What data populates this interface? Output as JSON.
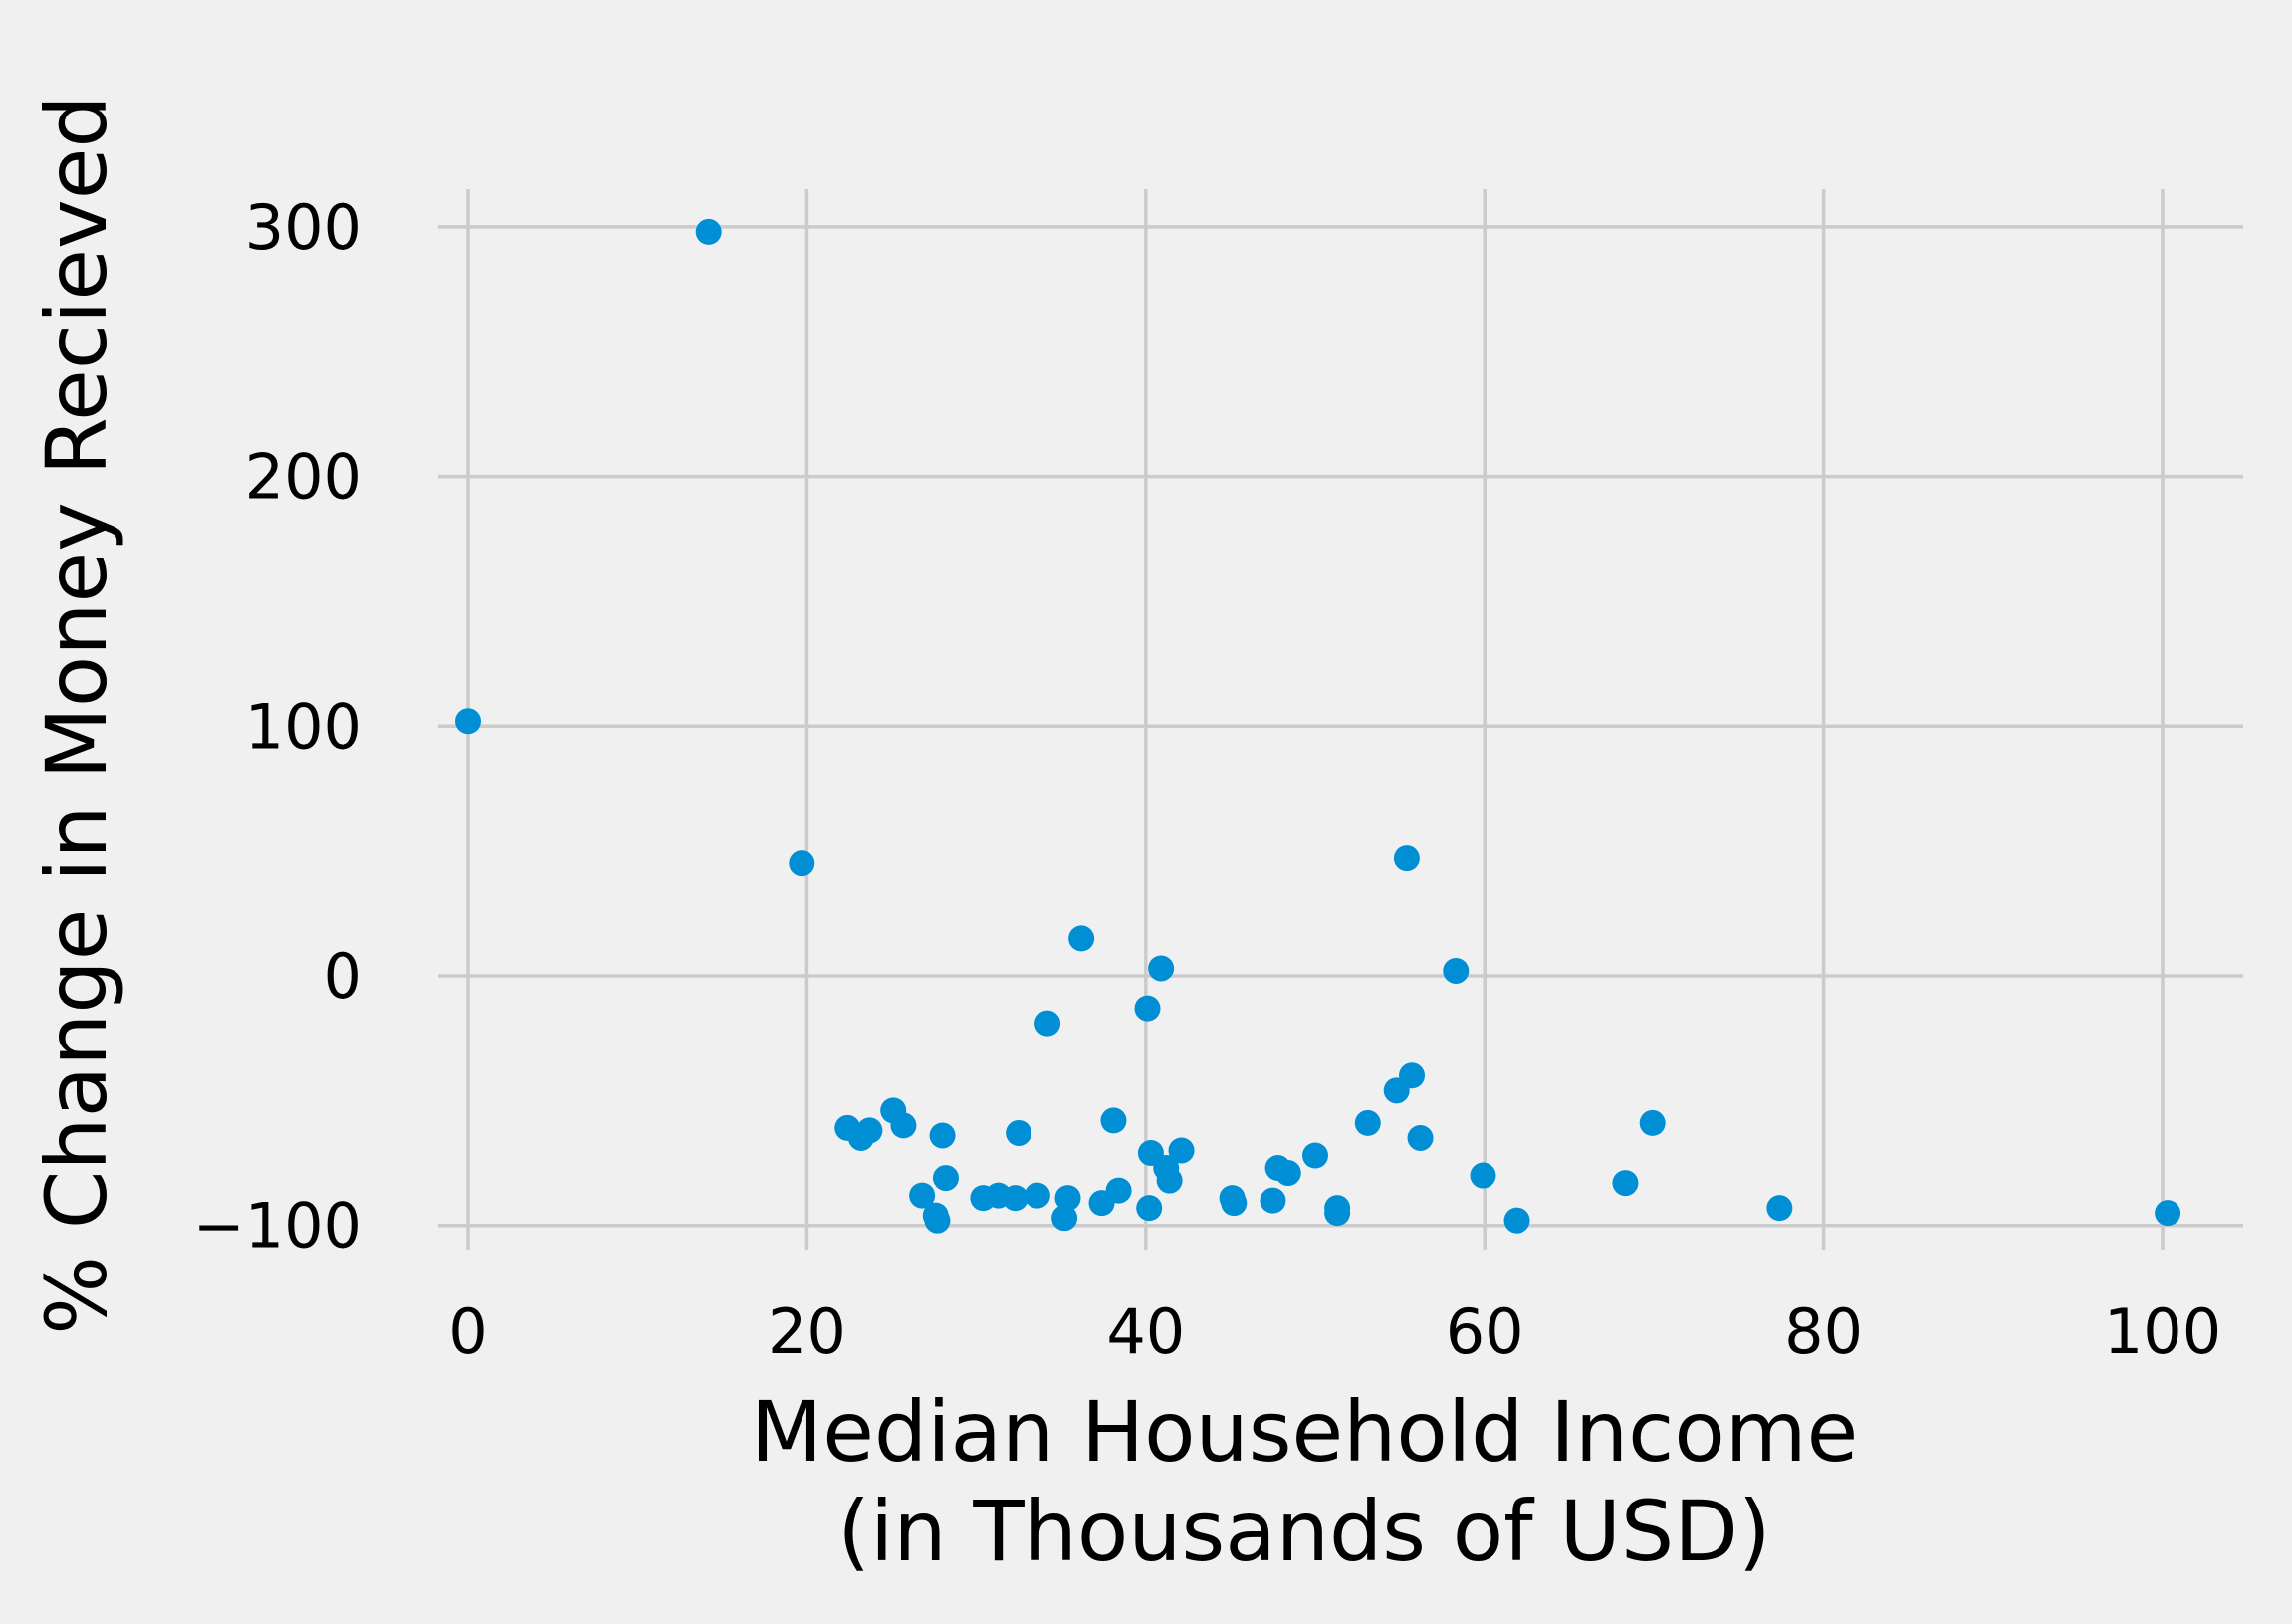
{
  "chart_data": {
    "type": "scatter",
    "title": "",
    "xlabel": "Median Household Income",
    "xlabel_line2": "(in Thousands of USD)",
    "ylabel": "% Change in Money Recieved",
    "xlim": [
      -4,
      104
    ],
    "ylim": [
      -110,
      375
    ],
    "xticks": [
      0,
      20,
      40,
      60,
      80,
      100
    ],
    "yticks": [
      -100,
      0,
      100,
      200,
      300
    ],
    "ytick_labels": [
      "−100",
      "0",
      "100",
      "200",
      "300"
    ],
    "grid": true,
    "colors": {
      "point": "#008fd5",
      "grid": "#cbcbcb",
      "background": "#f0f0f0"
    },
    "points": [
      {
        "x": 0.0,
        "y": 102
      },
      {
        "x": 14.2,
        "y": 298
      },
      {
        "x": 19.7,
        "y": 45
      },
      {
        "x": 22.4,
        "y": -61
      },
      {
        "x": 23.2,
        "y": -65
      },
      {
        "x": 23.7,
        "y": -62
      },
      {
        "x": 25.1,
        "y": -54
      },
      {
        "x": 25.7,
        "y": -60
      },
      {
        "x": 26.8,
        "y": -88
      },
      {
        "x": 27.7,
        "y": -98
      },
      {
        "x": 27.6,
        "y": -96
      },
      {
        "x": 28.0,
        "y": -64
      },
      {
        "x": 28.2,
        "y": -81
      },
      {
        "x": 30.4,
        "y": -89
      },
      {
        "x": 31.3,
        "y": -88
      },
      {
        "x": 32.3,
        "y": -89
      },
      {
        "x": 32.5,
        "y": -63
      },
      {
        "x": 33.6,
        "y": -88
      },
      {
        "x": 34.2,
        "y": -19
      },
      {
        "x": 35.2,
        "y": -97
      },
      {
        "x": 35.4,
        "y": -89
      },
      {
        "x": 36.2,
        "y": 15
      },
      {
        "x": 37.4,
        "y": -91
      },
      {
        "x": 38.1,
        "y": -58
      },
      {
        "x": 38.4,
        "y": -86
      },
      {
        "x": 40.1,
        "y": -13
      },
      {
        "x": 40.2,
        "y": -93
      },
      {
        "x": 40.3,
        "y": -71
      },
      {
        "x": 40.9,
        "y": 3
      },
      {
        "x": 41.2,
        "y": -77
      },
      {
        "x": 41.4,
        "y": -82
      },
      {
        "x": 42.1,
        "y": -70
      },
      {
        "x": 45.1,
        "y": -89
      },
      {
        "x": 45.2,
        "y": -91
      },
      {
        "x": 47.5,
        "y": -90
      },
      {
        "x": 47.8,
        "y": -77
      },
      {
        "x": 48.4,
        "y": -79
      },
      {
        "x": 50.0,
        "y": -72
      },
      {
        "x": 51.3,
        "y": -93
      },
      {
        "x": 51.3,
        "y": -95
      },
      {
        "x": 53.1,
        "y": -59
      },
      {
        "x": 54.8,
        "y": -46
      },
      {
        "x": 55.4,
        "y": 47
      },
      {
        "x": 55.7,
        "y": -40
      },
      {
        "x": 56.2,
        "y": -65
      },
      {
        "x": 58.3,
        "y": 2
      },
      {
        "x": 59.9,
        "y": -80
      },
      {
        "x": 61.9,
        "y": -98
      },
      {
        "x": 68.3,
        "y": -83
      },
      {
        "x": 69.9,
        "y": -59
      },
      {
        "x": 77.4,
        "y": -93
      },
      {
        "x": 100.3,
        "y": -95
      }
    ]
  }
}
